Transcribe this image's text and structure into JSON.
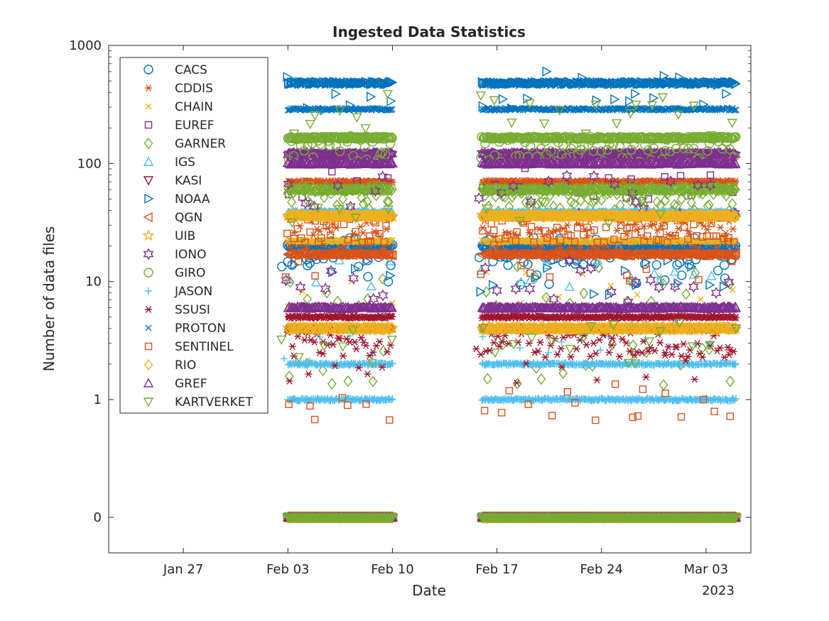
{
  "chart_data": {
    "type": "scatter",
    "title": "Ingested Data Statistics",
    "xlabel": "Date",
    "ylabel": "Number of data files",
    "x_year_label": "2023",
    "y_scale": "log (with 0 shown below 1)",
    "ylim": [
      0,
      1000
    ],
    "xlim": [
      "2023-01-22",
      "2023-03-06"
    ],
    "x_ticks": [
      {
        "date": "2023-01-27",
        "label": "Jan 27"
      },
      {
        "date": "2023-02-03",
        "label": "Feb 03"
      },
      {
        "date": "2023-02-10",
        "label": "Feb 10"
      },
      {
        "date": "2023-02-17",
        "label": "Feb 17"
      },
      {
        "date": "2023-02-24",
        "label": "Feb 24"
      },
      {
        "date": "2023-03-03",
        "label": "Mar 03"
      }
    ],
    "y_ticks": [
      {
        "value": 0,
        "label": "0"
      },
      {
        "value": 1,
        "label": "1"
      },
      {
        "value": 10,
        "label": "10"
      },
      {
        "value": 100,
        "label": "100"
      },
      {
        "value": 1000,
        "label": "1000"
      }
    ],
    "data_periods": [
      {
        "start": "2023-02-03",
        "end": "2023-02-10"
      },
      {
        "start": "2023-02-16",
        "end": "2023-02-26"
      },
      {
        "start": "2023-02-26",
        "end": "2023-03-05"
      }
    ],
    "legend_position": "top-left",
    "series": [
      {
        "name": "CACS",
        "marker": "circle",
        "color": "#0072BD",
        "values": [
          {
            "v": 20,
            "mode": "line"
          },
          {
            "v": 18,
            "mode": "scatter"
          },
          {
            "v": 14,
            "mode": "sparse"
          },
          {
            "v": 0,
            "mode": "zero"
          }
        ]
      },
      {
        "name": "CDDIS",
        "marker": "asterisk",
        "color": "#D95319",
        "values": [
          {
            "v": 70,
            "mode": "line"
          },
          {
            "v": 25,
            "mode": "scatter"
          },
          {
            "v": 0,
            "mode": "zero"
          }
        ]
      },
      {
        "name": "CHAIN",
        "marker": "x",
        "color": "#EDB120",
        "values": [
          {
            "v": 22,
            "mode": "line"
          },
          {
            "v": 8,
            "mode": "sparse"
          },
          {
            "v": 0,
            "mode": "zero"
          }
        ]
      },
      {
        "name": "EUREF",
        "marker": "square",
        "color": "#7E2F8E",
        "values": [
          {
            "v": 75,
            "mode": "sparse"
          },
          {
            "v": 0,
            "mode": "zero"
          }
        ]
      },
      {
        "name": "GARNER",
        "marker": "diamond",
        "color": "#77AC30",
        "values": [
          {
            "v": 60,
            "mode": "line"
          },
          {
            "v": 50,
            "mode": "scatter"
          },
          {
            "v": 9,
            "mode": "sparse"
          },
          {
            "v": 2,
            "mode": "sparse"
          },
          {
            "v": 0,
            "mode": "zero"
          }
        ]
      },
      {
        "name": "IGS",
        "marker": "triangle-up",
        "color": "#4DBEEE",
        "values": [
          {
            "v": 38,
            "mode": "line"
          },
          {
            "v": 13,
            "mode": "sparse"
          },
          {
            "v": 0,
            "mode": "zero"
          }
        ]
      },
      {
        "name": "KASI",
        "marker": "triangle-down",
        "color": "#A2142F",
        "values": [
          {
            "v": 0,
            "mode": "zero"
          }
        ]
      },
      {
        "name": "NOAA",
        "marker": "triangle-right",
        "color": "#0072BD",
        "values": [
          {
            "v": 480,
            "mode": "line"
          },
          {
            "v": 400,
            "mode": "sparse"
          },
          {
            "v": 11,
            "mode": "sparse"
          },
          {
            "v": 0,
            "mode": "zero"
          }
        ]
      },
      {
        "name": "QGN",
        "marker": "triangle-left",
        "color": "#D95319",
        "values": [
          {
            "v": 17,
            "mode": "line"
          },
          {
            "v": 0,
            "mode": "zero"
          }
        ]
      },
      {
        "name": "UIB",
        "marker": "pentagram",
        "color": "#EDB120",
        "values": [
          {
            "v": 36,
            "mode": "line"
          },
          {
            "v": 4,
            "mode": "line"
          },
          {
            "v": 0,
            "mode": "zero"
          }
        ]
      },
      {
        "name": "IONO",
        "marker": "hexagram",
        "color": "#7E2F8E",
        "values": [
          {
            "v": 120,
            "mode": "line"
          },
          {
            "v": 55,
            "mode": "sparse"
          },
          {
            "v": 10,
            "mode": "sparse"
          },
          {
            "v": 0,
            "mode": "zero"
          }
        ]
      },
      {
        "name": "GIRO",
        "marker": "circle",
        "color": "#77AC30",
        "values": [
          {
            "v": 165,
            "mode": "line"
          },
          {
            "v": 130,
            "mode": "scatter"
          },
          {
            "v": 0,
            "mode": "zero"
          }
        ]
      },
      {
        "name": "JASON",
        "marker": "plus",
        "color": "#4DBEEE",
        "values": [
          {
            "v": 3,
            "mode": "sparse"
          },
          {
            "v": 2,
            "mode": "line"
          },
          {
            "v": 1,
            "mode": "line"
          },
          {
            "v": 0,
            "mode": "zero"
          }
        ]
      },
      {
        "name": "SSUSI",
        "marker": "asterisk",
        "color": "#A2142F",
        "values": [
          {
            "v": 5,
            "mode": "line"
          },
          {
            "v": 4,
            "mode": "line"
          },
          {
            "v": 3,
            "mode": "scatter"
          },
          {
            "v": 2,
            "mode": "sparse"
          },
          {
            "v": 0,
            "mode": "zero"
          }
        ]
      },
      {
        "name": "PROTON",
        "marker": "x",
        "color": "#0072BD",
        "values": [
          {
            "v": 288,
            "mode": "line"
          },
          {
            "v": 0,
            "mode": "zero"
          }
        ]
      },
      {
        "name": "SENTINEL",
        "marker": "square",
        "color": "#D95319",
        "values": [
          {
            "v": 28,
            "mode": "scatter"
          },
          {
            "v": 15,
            "mode": "sparse"
          },
          {
            "v": 1,
            "mode": "sparse"
          },
          {
            "v": 0,
            "mode": "zero"
          }
        ]
      },
      {
        "name": "RIO",
        "marker": "diamond",
        "color": "#EDB120",
        "values": [
          {
            "v": 36,
            "mode": "line"
          },
          {
            "v": 4,
            "mode": "line"
          },
          {
            "v": 0,
            "mode": "zero"
          }
        ]
      },
      {
        "name": "GREF",
        "marker": "triangle-up",
        "color": "#7E2F8E",
        "values": [
          {
            "v": 100,
            "mode": "line"
          },
          {
            "v": 6,
            "mode": "line"
          },
          {
            "v": 0,
            "mode": "zero"
          }
        ]
      },
      {
        "name": "KARTVERKET",
        "marker": "triangle-down",
        "color": "#77AC30",
        "values": [
          {
            "v": 260,
            "mode": "sparse"
          },
          {
            "v": 45,
            "mode": "sparse"
          },
          {
            "v": 3,
            "mode": "sparse"
          },
          {
            "v": 0,
            "mode": "zero"
          }
        ]
      }
    ]
  }
}
